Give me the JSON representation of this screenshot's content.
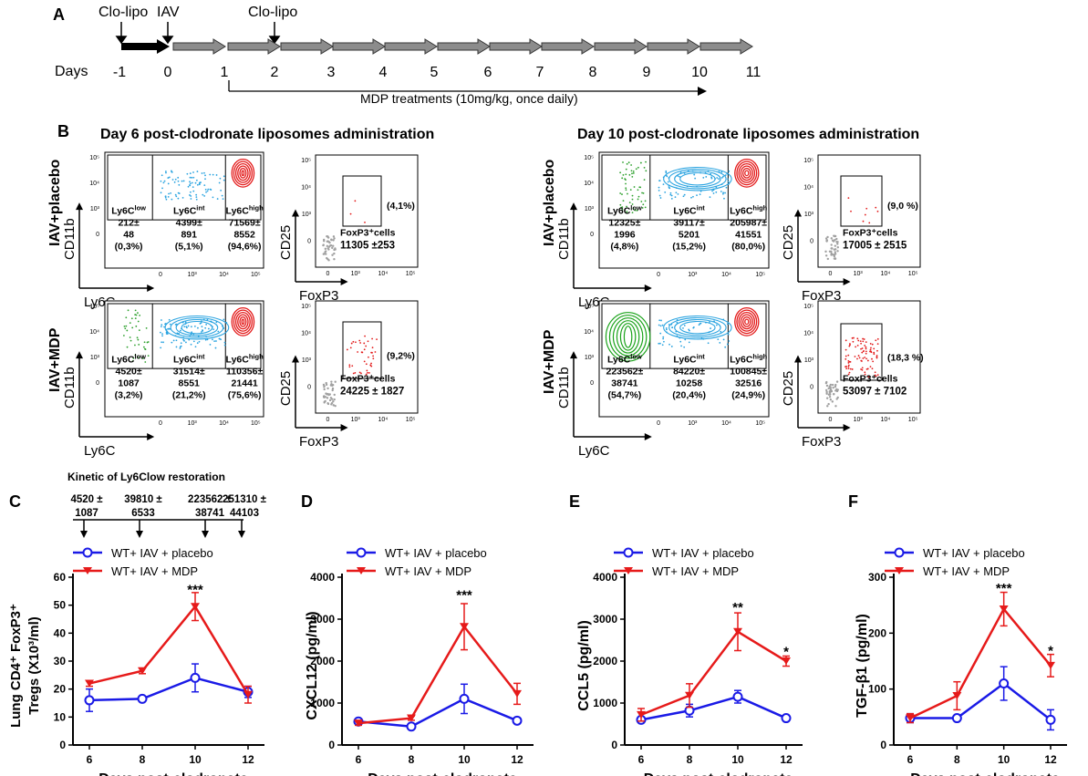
{
  "panel_a": {
    "label": "A",
    "events": [
      {
        "name": "Clo-lipo",
        "day": -1
      },
      {
        "name": "IAV",
        "day": 0
      },
      {
        "name": "Clo-lipo",
        "day": 2
      }
    ],
    "days_label": "Days",
    "days": [
      "-1",
      "0",
      "1",
      "2",
      "3",
      "4",
      "5",
      "6",
      "7",
      "8",
      "9",
      "10",
      "11"
    ],
    "treatment_label": "MDP treatments (10mg/kg, once daily)"
  },
  "panel_b": {
    "label": "B",
    "day6_title": "Day 6 post-clodronate liposomes administration",
    "day10_title": "Day 10 post-clodronate liposomes administration",
    "row_labels": [
      "IAV+placebo",
      "IAV+MDP"
    ],
    "ly6c_axis": {
      "x": "Ly6C",
      "y": "CD11b"
    },
    "foxp3_axis": {
      "x": "FoxP3",
      "y": "CD25"
    },
    "ly6c_plots": [
      {
        "id": "d6p",
        "low": [
          "212±",
          "48",
          "(0,3%)"
        ],
        "int": [
          "4399±",
          "891",
          "(5,1%)"
        ],
        "high": [
          "71569±",
          "8552",
          "(94,6%)"
        ]
      },
      {
        "id": "d6m",
        "low": [
          "4520±",
          "1087",
          "(3,2%)"
        ],
        "int": [
          "31514±",
          "8551",
          "(21,2%)"
        ],
        "high": [
          "110356±",
          "21441",
          "(75,6%)"
        ]
      },
      {
        "id": "d10p",
        "low": [
          "12325±",
          "1996",
          "(4,8%)"
        ],
        "int": [
          "39117±",
          "5201",
          "(15,2%)"
        ],
        "high": [
          "205987±",
          "41551",
          "(80,0%)"
        ]
      },
      {
        "id": "d10m",
        "low": [
          "223562±",
          "38741",
          "(54,7%)"
        ],
        "int": [
          "84220±",
          "10258",
          "(20,4%)"
        ],
        "high": [
          "100845±",
          "32516",
          "(24,9%)"
        ]
      }
    ],
    "gate_labels": {
      "low": "Ly6Clow",
      "int": "Ly6Cint",
      "high": "Ly6Chigh"
    },
    "foxp3_plots": [
      {
        "id": "d6p",
        "pct": "(4,1%)",
        "label": "FoxP3⁺cells",
        "count": "11305 ±253"
      },
      {
        "id": "d6m",
        "pct": "(9,2%)",
        "label": "FoxP3⁺cells",
        "count": "24225 ± 1827"
      },
      {
        "id": "d10p",
        "pct": "(9,0 %)",
        "label": "FoxP3⁺cells",
        "count": "17005 ± 2515"
      },
      {
        "id": "d10m",
        "pct": "(18,3 %)",
        "label": "FoxP3⁺cells",
        "count": "53097 ± 7102"
      }
    ]
  },
  "kinetic": {
    "title": "Kinetic of Ly6Clow restoration",
    "values": [
      [
        "4520 ±",
        "1087"
      ],
      [
        "39810 ±",
        "6533"
      ],
      [
        "223562 ±",
        "38741"
      ],
      [
        "251310 ±",
        "44103"
      ]
    ]
  },
  "legend": {
    "placebo": "WT+ IAV + placebo",
    "mdp": "WT+ IAV + MDP"
  },
  "colors": {
    "placebo": "#1a1ae6",
    "mdp": "#e61a1a"
  },
  "chart_data": [
    {
      "panel": "C",
      "type": "line",
      "ylabel": "Lung CD4⁺ FoxP3⁺ Tregs (X10³/ml)",
      "xlabel": "Days post-clodronate administration",
      "x": [
        6,
        8,
        10,
        12
      ],
      "ylim": [
        0,
        60
      ],
      "yticks": [
        0,
        10,
        20,
        30,
        40,
        50,
        60
      ],
      "series": [
        {
          "name": "WT+ IAV + placebo",
          "values": [
            16,
            16.5,
            24,
            19
          ],
          "errors": [
            4,
            0.5,
            5,
            2
          ]
        },
        {
          "name": "WT+ IAV + MDP",
          "values": [
            22,
            26.5,
            49.5,
            18
          ],
          "errors": [
            1,
            1,
            5,
            3
          ]
        }
      ],
      "annotations": [
        {
          "x": 10,
          "text": "***",
          "y": 56
        }
      ]
    },
    {
      "panel": "D",
      "type": "line",
      "ylabel": "CXCL12 (pg/ml)",
      "xlabel": "Days post-clodronate administration",
      "x": [
        6,
        8,
        10,
        12
      ],
      "ylim": [
        0,
        4000
      ],
      "yticks": [
        0,
        1000,
        2000,
        3000,
        4000
      ],
      "series": [
        {
          "name": "WT+ IAV + placebo",
          "values": [
            560,
            440,
            1100,
            580
          ],
          "errors": [
            50,
            50,
            350,
            60
          ]
        },
        {
          "name": "WT+ IAV + MDP",
          "values": [
            520,
            640,
            2820,
            1220
          ],
          "errors": [
            50,
            50,
            550,
            250
          ]
        }
      ],
      "annotations": [
        {
          "x": 10,
          "text": "***",
          "y": 3600
        }
      ]
    },
    {
      "panel": "E",
      "type": "line",
      "ylabel": "CCL5 (pg/ml)",
      "xlabel": "Days post-clodronate administration",
      "x": [
        6,
        8,
        10,
        12
      ],
      "ylim": [
        0,
        4000
      ],
      "yticks": [
        0,
        1000,
        2000,
        3000,
        4000
      ],
      "series": [
        {
          "name": "WT+ IAV + placebo",
          "values": [
            600,
            820,
            1150,
            640
          ],
          "errors": [
            60,
            150,
            150,
            50
          ]
        },
        {
          "name": "WT+ IAV + MDP",
          "values": [
            720,
            1180,
            2700,
            2000
          ],
          "errors": [
            150,
            280,
            450,
            120
          ]
        }
      ],
      "annotations": [
        {
          "x": 10,
          "text": "**",
          "y": 3300
        },
        {
          "x": 12,
          "text": "*",
          "y": 2250
        }
      ]
    },
    {
      "panel": "F",
      "type": "line",
      "ylabel": "TGF-β1 (pg/ml)",
      "xlabel": "Days post-clodronate administration",
      "x": [
        6,
        8,
        10,
        12
      ],
      "ylim": [
        0,
        300
      ],
      "yticks": [
        0,
        100,
        200,
        300
      ],
      "series": [
        {
          "name": "WT+ IAV + placebo",
          "values": [
            48,
            48,
            110,
            45
          ],
          "errors": [
            8,
            4,
            30,
            18
          ]
        },
        {
          "name": "WT+ IAV + MDP",
          "values": [
            48,
            88,
            243,
            142
          ],
          "errors": [
            8,
            25,
            30,
            20
          ]
        }
      ],
      "annotations": [
        {
          "x": 10,
          "text": "***",
          "y": 282
        },
        {
          "x": 12,
          "text": "*",
          "y": 170
        }
      ]
    }
  ]
}
